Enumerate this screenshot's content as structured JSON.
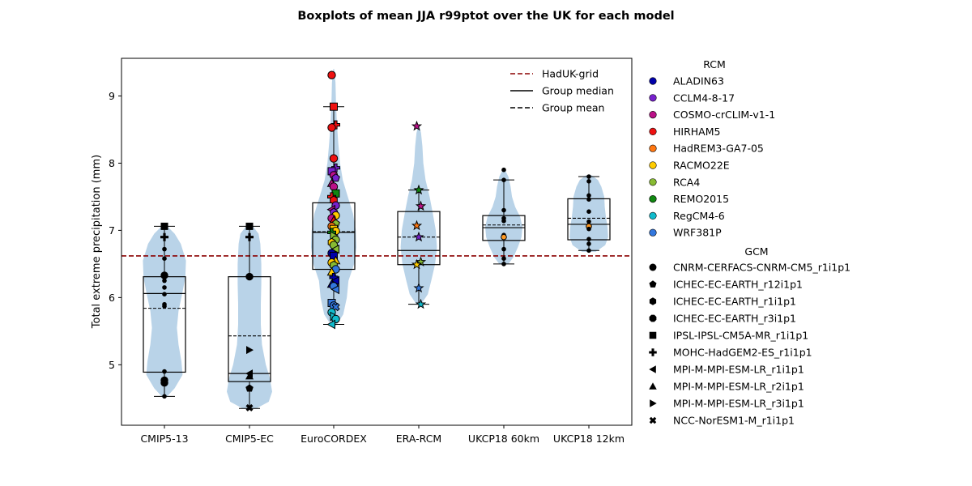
{
  "chart_data": {
    "type": "violin+box+strip",
    "title": "Boxplots of mean JJA r99ptot over the UK for each model",
    "xlabel": "",
    "ylabel": "Total extreme precipitation (mm)",
    "ylim": [
      4.1,
      9.56
    ],
    "yticks": [
      5,
      6,
      7,
      8,
      9
    ],
    "categories": [
      "CMIP5-13",
      "CMIP5-EC",
      "EuroCORDEX",
      "ERA-RCM",
      "UKCP18 60km",
      "UKCP18 12km"
    ],
    "reference_line": {
      "name": "HadUK-grid",
      "value": 6.62,
      "color": "#8b0000"
    },
    "legend_lines": [
      {
        "label": "HadUK-grid",
        "style": "dashed",
        "color": "#8b0000"
      },
      {
        "label": "Group median",
        "style": "solid",
        "color": "#000000"
      },
      {
        "label": "Group mean",
        "style": "dashed",
        "color": "#000000"
      }
    ],
    "rcm_legend": {
      "title": "RCM",
      "items": [
        {
          "label": "ALADIN63",
          "color": "#0000aa"
        },
        {
          "label": "CCLM4-8-17",
          "color": "#7722cc"
        },
        {
          "label": "COSMO-crCLIM-v1-1",
          "color": "#bb1188"
        },
        {
          "label": "HIRHAM5",
          "color": "#ee1111"
        },
        {
          "label": "HadREM3-GA7-05",
          "color": "#ff7711"
        },
        {
          "label": "RACMO22E",
          "color": "#ffcc00"
        },
        {
          "label": "RCA4",
          "color": "#88bb33"
        },
        {
          "label": "REMO2015",
          "color": "#118811"
        },
        {
          "label": "RegCM4-6",
          "color": "#11bbcc"
        },
        {
          "label": "WRF381P",
          "color": "#3377dd"
        }
      ]
    },
    "gcm_legend": {
      "title": "GCM",
      "items": [
        {
          "label": "CNRM-CERFACS-CNRM-CM5_r1i1p1",
          "marker": "circle"
        },
        {
          "label": "ICHEC-EC-EARTH_r12i1p1",
          "marker": "pentagon"
        },
        {
          "label": "ICHEC-EC-EARTH_r1i1p1",
          "marker": "hexagon"
        },
        {
          "label": "ICHEC-EC-EARTH_r3i1p1",
          "marker": "octagon"
        },
        {
          "label": "IPSL-IPSL-CM5A-MR_r1i1p1",
          "marker": "square"
        },
        {
          "label": "MOHC-HadGEM2-ES_r1i1p1",
          "marker": "plus"
        },
        {
          "label": "MPI-M-MPI-ESM-LR_r1i1p1",
          "marker": "tri-left"
        },
        {
          "label": "MPI-M-MPI-ESM-LR_r2i1p1",
          "marker": "tri-up"
        },
        {
          "label": "MPI-M-MPI-ESM-LR_r3i1p1",
          "marker": "tri-right"
        },
        {
          "label": "NCC-NorESM1-M_r1i1p1",
          "marker": "x"
        }
      ]
    },
    "groups": [
      {
        "category": "CMIP5-13",
        "box": {
          "q1": 4.89,
          "median": 6.06,
          "q3": 6.31,
          "whisker_low": 4.53,
          "whisker_high": 7.06,
          "mean": 5.84
        },
        "violin": {
          "y": [
            4.53,
            4.65,
            4.85,
            5.05,
            5.3,
            5.55,
            5.8,
            6.05,
            6.3,
            6.55,
            6.8,
            6.95,
            7.06
          ],
          "w": [
            0.12,
            0.45,
            0.8,
            0.75,
            0.62,
            0.55,
            0.62,
            0.78,
            0.92,
            0.95,
            0.72,
            0.45,
            0.12
          ]
        },
        "points": [
          {
            "v": 7.06,
            "m": "square"
          },
          {
            "v": 6.9,
            "m": "plus"
          },
          {
            "v": 6.72,
            "m": "dot"
          },
          {
            "v": 6.58,
            "m": "dot"
          },
          {
            "v": 6.33,
            "m": "circle"
          },
          {
            "v": 6.3,
            "m": "dot"
          },
          {
            "v": 6.25,
            "m": "dot"
          },
          {
            "v": 6.15,
            "m": "dot"
          },
          {
            "v": 6.05,
            "m": "dot"
          },
          {
            "v": 5.9,
            "m": "dot"
          },
          {
            "v": 5.87,
            "m": "dot"
          },
          {
            "v": 4.9,
            "m": "dot"
          },
          {
            "v": 4.77,
            "m": "circle"
          },
          {
            "v": 4.73,
            "m": "circle"
          },
          {
            "v": 4.53,
            "m": "dot"
          }
        ]
      },
      {
        "category": "CMIP5-EC",
        "box": {
          "q1": 4.75,
          "median": 4.87,
          "q3": 6.31,
          "whisker_low": 4.35,
          "whisker_high": 7.06,
          "mean": 5.43
        },
        "violin": {
          "y": [
            4.35,
            4.45,
            4.6,
            4.8,
            5.0,
            5.3,
            5.6,
            5.9,
            6.2,
            6.5,
            6.8,
            6.95,
            7.06
          ],
          "w": [
            0.3,
            0.85,
            1.0,
            0.9,
            0.72,
            0.55,
            0.5,
            0.5,
            0.52,
            0.52,
            0.48,
            0.4,
            0.15
          ]
        },
        "points": [
          {
            "v": 7.06,
            "m": "square"
          },
          {
            "v": 6.9,
            "m": "plus"
          },
          {
            "v": 6.31,
            "m": "circle"
          },
          {
            "v": 5.22,
            "m": "tri-right"
          },
          {
            "v": 4.87,
            "m": "tri-left"
          },
          {
            "v": 4.83,
            "m": "tri-up"
          },
          {
            "v": 4.65,
            "m": "pentagon"
          },
          {
            "v": 4.36,
            "m": "x"
          }
        ]
      },
      {
        "category": "EuroCORDEX",
        "box": {
          "q1": 6.42,
          "median": 6.97,
          "q3": 7.41,
          "whisker_low": 5.6,
          "whisker_high": 8.84,
          "mean": 6.98
        },
        "violin": {
          "y": [
            5.58,
            5.75,
            6.0,
            6.25,
            6.5,
            6.75,
            7.0,
            7.25,
            7.5,
            7.75,
            8.0,
            8.3,
            8.6,
            8.9,
            9.2,
            9.4
          ],
          "w": [
            0.1,
            0.42,
            0.58,
            0.65,
            0.9,
            1.0,
            0.97,
            0.85,
            0.62,
            0.4,
            0.28,
            0.2,
            0.14,
            0.1,
            0.08,
            0.02
          ]
        },
        "points": [
          {
            "v": 9.31,
            "m": "circle",
            "c": 3
          },
          {
            "v": 8.84,
            "m": "square",
            "c": 3
          },
          {
            "v": 8.57,
            "m": "plus",
            "c": 3
          },
          {
            "v": 8.53,
            "m": "circle",
            "c": 3
          },
          {
            "v": 8.07,
            "m": "circle",
            "c": 3
          },
          {
            "v": 7.93,
            "m": "plus",
            "c": 1
          },
          {
            "v": 7.88,
            "m": "square",
            "c": 1
          },
          {
            "v": 7.82,
            "m": "circle",
            "c": 2
          },
          {
            "v": 7.78,
            "m": "pentagon",
            "c": 1
          },
          {
            "v": 7.7,
            "m": "tri-up",
            "c": 2
          },
          {
            "v": 7.65,
            "m": "circle",
            "c": 2
          },
          {
            "v": 7.55,
            "m": "square",
            "c": 7
          },
          {
            "v": 7.5,
            "m": "plus",
            "c": 3
          },
          {
            "v": 7.45,
            "m": "hexagon",
            "c": 3
          },
          {
            "v": 7.37,
            "m": "circle",
            "c": 1
          },
          {
            "v": 7.31,
            "m": "tri-left",
            "c": 2
          },
          {
            "v": 7.27,
            "m": "pentagon",
            "c": 1
          },
          {
            "v": 7.22,
            "m": "circle",
            "c": 5
          },
          {
            "v": 7.18,
            "m": "circle",
            "c": 2
          },
          {
            "v": 7.15,
            "m": "tri-up",
            "c": 3
          },
          {
            "v": 7.1,
            "m": "pentagon",
            "c": 6
          },
          {
            "v": 7.06,
            "m": "circle",
            "c": 4
          },
          {
            "v": 7.02,
            "m": "square",
            "c": 5
          },
          {
            "v": 6.99,
            "m": "circle",
            "c": 5
          },
          {
            "v": 6.97,
            "m": "plus",
            "c": 7
          },
          {
            "v": 6.92,
            "m": "tri-right",
            "c": 6
          },
          {
            "v": 6.86,
            "m": "circle",
            "c": 6
          },
          {
            "v": 6.82,
            "m": "hexagon",
            "c": 5
          },
          {
            "v": 6.78,
            "m": "circle",
            "c": 6
          },
          {
            "v": 6.72,
            "m": "tri-left",
            "c": 6
          },
          {
            "v": 6.66,
            "m": "circle",
            "c": 0
          },
          {
            "v": 6.62,
            "m": "square",
            "c": 0
          },
          {
            "v": 6.55,
            "m": "tri-up",
            "c": 5
          },
          {
            "v": 6.52,
            "m": "circle",
            "c": 5
          },
          {
            "v": 6.48,
            "m": "hexagon",
            "c": 6
          },
          {
            "v": 6.42,
            "m": "circle",
            "c": 9
          },
          {
            "v": 6.38,
            "m": "tri-up",
            "c": 5
          },
          {
            "v": 6.3,
            "m": "plus",
            "c": 0
          },
          {
            "v": 6.25,
            "m": "tri-left",
            "c": 0
          },
          {
            "v": 6.2,
            "m": "tri-up",
            "c": 0
          },
          {
            "v": 6.17,
            "m": "circle",
            "c": 9
          },
          {
            "v": 6.12,
            "m": "tri-left",
            "c": 9
          },
          {
            "v": 5.92,
            "m": "square",
            "c": 9
          },
          {
            "v": 5.88,
            "m": "circle",
            "c": 9
          },
          {
            "v": 5.86,
            "m": "x",
            "c": 9
          },
          {
            "v": 5.78,
            "m": "circle",
            "c": 8
          },
          {
            "v": 5.72,
            "m": "tri-right",
            "c": 8
          },
          {
            "v": 5.68,
            "m": "circle",
            "c": 8
          },
          {
            "v": 5.6,
            "m": "tri-left",
            "c": 8
          }
        ]
      },
      {
        "category": "ERA-RCM",
        "box": {
          "q1": 6.49,
          "median": 6.7,
          "q3": 7.28,
          "whisker_low": 5.9,
          "whisker_high": 7.6,
          "mean": 6.9
        },
        "violin": {
          "y": [
            5.9,
            6.05,
            6.25,
            6.5,
            6.75,
            7.0,
            7.25,
            7.5,
            7.75,
            8.0,
            8.25,
            8.45,
            8.55
          ],
          "w": [
            0.1,
            0.4,
            0.55,
            0.72,
            0.8,
            0.75,
            0.62,
            0.48,
            0.3,
            0.2,
            0.16,
            0.1,
            0.03
          ]
        },
        "points": [
          {
            "v": 8.55,
            "m": "star",
            "c": 2
          },
          {
            "v": 7.6,
            "m": "star",
            "c": 7
          },
          {
            "v": 7.36,
            "m": "star",
            "c": 2
          },
          {
            "v": 7.07,
            "m": "star",
            "c": 4
          },
          {
            "v": 6.9,
            "m": "star",
            "c": 1
          },
          {
            "v": 6.53,
            "m": "star",
            "c": 6
          },
          {
            "v": 6.49,
            "m": "star",
            "c": 5
          },
          {
            "v": 6.14,
            "m": "star",
            "c": 9
          },
          {
            "v": 5.9,
            "m": "star",
            "c": 8
          }
        ]
      },
      {
        "category": "UKCP18 60km",
        "box": {
          "q1": 6.85,
          "median": 7.04,
          "q3": 7.22,
          "whisker_low": 6.5,
          "whisker_high": 7.75,
          "mean": 7.08
        },
        "violin": {
          "y": [
            6.5,
            6.6,
            6.75,
            6.9,
            7.05,
            7.2,
            7.35,
            7.5,
            7.65,
            7.8,
            7.9
          ],
          "w": [
            0.2,
            0.42,
            0.62,
            0.78,
            0.82,
            0.72,
            0.5,
            0.36,
            0.3,
            0.2,
            0.05
          ]
        },
        "points": [
          {
            "v": 7.9,
            "m": "dot"
          },
          {
            "v": 7.75,
            "m": "dot"
          },
          {
            "v": 7.3,
            "m": "dot"
          },
          {
            "v": 7.18,
            "m": "dot"
          },
          {
            "v": 7.14,
            "m": "dot"
          },
          {
            "v": 6.93,
            "m": "dot"
          },
          {
            "v": 6.9,
            "m": "dot-orange"
          },
          {
            "v": 6.72,
            "m": "dot"
          },
          {
            "v": 6.58,
            "m": "dot"
          },
          {
            "v": 6.5,
            "m": "dot"
          }
        ]
      },
      {
        "category": "UKCP18 12km",
        "box": {
          "q1": 6.86,
          "median": 7.09,
          "q3": 7.47,
          "whisker_low": 6.7,
          "whisker_high": 7.8,
          "mean": 7.18
        },
        "violin": {
          "y": [
            6.68,
            6.78,
            6.9,
            7.05,
            7.2,
            7.35,
            7.5,
            7.65,
            7.75,
            7.82
          ],
          "w": [
            0.3,
            0.72,
            0.85,
            0.82,
            0.75,
            0.7,
            0.68,
            0.55,
            0.4,
            0.12
          ]
        },
        "points": [
          {
            "v": 7.8,
            "m": "dot"
          },
          {
            "v": 7.73,
            "m": "dot"
          },
          {
            "v": 7.52,
            "m": "dot"
          },
          {
            "v": 7.46,
            "m": "dot"
          },
          {
            "v": 7.28,
            "m": "dot"
          },
          {
            "v": 7.13,
            "m": "dot"
          },
          {
            "v": 7.06,
            "m": "dot-orange"
          },
          {
            "v": 7.02,
            "m": "dot"
          },
          {
            "v": 6.87,
            "m": "dot"
          },
          {
            "v": 6.8,
            "m": "dot"
          },
          {
            "v": 6.7,
            "m": "dot"
          }
        ]
      }
    ]
  }
}
